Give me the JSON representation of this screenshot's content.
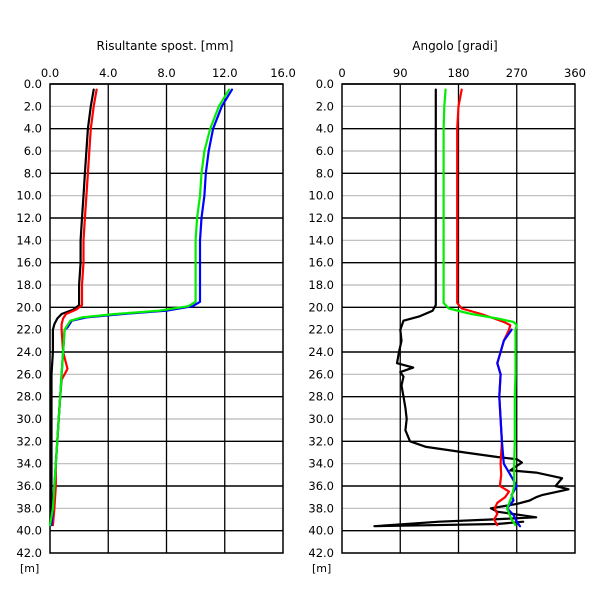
{
  "chart_data": [
    {
      "type": "line",
      "title": "Risultante spost. [mm]",
      "depth_unit": "[m]",
      "x_ticks": [
        "0.0",
        "4.0",
        "8.0",
        "12.0",
        "16.0"
      ],
      "xlim": [
        0,
        16
      ],
      "depth_ticks": [
        "0.0",
        "2.0",
        "4.0",
        "6.0",
        "8.0",
        "10.0",
        "12.0",
        "14.0",
        "16.0",
        "18.0",
        "20.0",
        "22.0",
        "24.0",
        "26.0",
        "28.0",
        "30.0",
        "32.0",
        "34.0",
        "36.0",
        "38.0",
        "40.0",
        "42.0"
      ],
      "depth_range": [
        0,
        42
      ],
      "grid": true,
      "series": [
        {
          "color": "#000000",
          "points": [
            [
              3.0,
              0.5
            ],
            [
              2.8,
              2
            ],
            [
              2.6,
              4
            ],
            [
              2.5,
              6
            ],
            [
              2.4,
              8
            ],
            [
              2.3,
              10
            ],
            [
              2.2,
              12
            ],
            [
              2.1,
              14
            ],
            [
              2.1,
              16
            ],
            [
              2.0,
              18
            ],
            [
              2.0,
              19.8
            ],
            [
              1.6,
              20.2
            ],
            [
              0.8,
              20.6
            ],
            [
              0.5,
              21.0
            ],
            [
              0.3,
              21.5
            ],
            [
              0.2,
              22
            ],
            [
              0.2,
              24
            ],
            [
              0.1,
              26
            ],
            [
              0.1,
              28
            ],
            [
              0.1,
              30
            ],
            [
              0.1,
              32
            ],
            [
              0.1,
              34
            ],
            [
              0.1,
              36
            ],
            [
              0.1,
              38
            ],
            [
              0.0,
              39.5
            ]
          ]
        },
        {
          "color": "#ff0000",
          "points": [
            [
              3.2,
              0.5
            ],
            [
              3.0,
              2
            ],
            [
              2.8,
              4
            ],
            [
              2.7,
              6
            ],
            [
              2.6,
              8
            ],
            [
              2.5,
              10
            ],
            [
              2.4,
              12
            ],
            [
              2.3,
              14
            ],
            [
              2.3,
              16
            ],
            [
              2.2,
              18
            ],
            [
              2.2,
              19.8
            ],
            [
              1.8,
              20.2
            ],
            [
              1.1,
              20.6
            ],
            [
              0.9,
              21.0
            ],
            [
              0.8,
              21.5
            ],
            [
              0.8,
              22
            ],
            [
              0.9,
              24
            ],
            [
              1.2,
              25.5
            ],
            [
              0.8,
              26.5
            ],
            [
              0.7,
              28
            ],
            [
              0.6,
              30
            ],
            [
              0.5,
              32
            ],
            [
              0.4,
              34
            ],
            [
              0.4,
              36
            ],
            [
              0.3,
              38
            ],
            [
              0.2,
              39.5
            ]
          ]
        },
        {
          "color": "#0000ff",
          "points": [
            [
              12.5,
              0.5
            ],
            [
              11.8,
              2
            ],
            [
              11.2,
              4
            ],
            [
              10.9,
              6
            ],
            [
              10.7,
              8
            ],
            [
              10.6,
              10
            ],
            [
              10.4,
              12
            ],
            [
              10.3,
              14
            ],
            [
              10.3,
              16
            ],
            [
              10.3,
              18
            ],
            [
              10.3,
              19.5
            ],
            [
              9.8,
              19.9
            ],
            [
              8.0,
              20.3
            ],
            [
              5.0,
              20.6
            ],
            [
              2.5,
              20.9
            ],
            [
              1.5,
              21.2
            ],
            [
              1.2,
              21.8
            ],
            [
              1.0,
              22
            ],
            [
              0.9,
              24
            ],
            [
              0.8,
              26
            ],
            [
              0.7,
              28
            ],
            [
              0.6,
              30
            ],
            [
              0.5,
              32
            ],
            [
              0.4,
              34
            ],
            [
              0.3,
              36
            ],
            [
              0.2,
              38
            ],
            [
              0.1,
              39.5
            ]
          ]
        },
        {
          "color": "#00ee00",
          "points": [
            [
              12.3,
              0.5
            ],
            [
              11.6,
              2
            ],
            [
              11.0,
              4
            ],
            [
              10.6,
              6
            ],
            [
              10.4,
              8
            ],
            [
              10.3,
              10
            ],
            [
              10.1,
              12
            ],
            [
              10.0,
              14
            ],
            [
              10.0,
              16
            ],
            [
              10.0,
              18
            ],
            [
              10.0,
              19.5
            ],
            [
              9.5,
              19.9
            ],
            [
              7.5,
              20.3
            ],
            [
              4.5,
              20.6
            ],
            [
              2.2,
              20.9
            ],
            [
              1.4,
              21.2
            ],
            [
              1.1,
              21.8
            ],
            [
              1.0,
              22
            ],
            [
              0.9,
              24
            ],
            [
              0.8,
              26
            ],
            [
              0.7,
              28
            ],
            [
              0.6,
              30
            ],
            [
              0.5,
              32
            ],
            [
              0.4,
              34
            ],
            [
              0.3,
              36
            ],
            [
              0.2,
              38
            ],
            [
              0.0,
              39.5
            ]
          ]
        }
      ]
    },
    {
      "type": "line",
      "title": "Angolo [gradi]",
      "depth_unit": "[m]",
      "x_ticks": [
        "0",
        "90",
        "180",
        "270",
        "360"
      ],
      "xlim": [
        0,
        360
      ],
      "depth_ticks": [
        "0.0",
        "2.0",
        "4.0",
        "6.0",
        "8.0",
        "10.0",
        "12.0",
        "14.0",
        "16.0",
        "18.0",
        "20.0",
        "22.0",
        "24.0",
        "26.0",
        "28.0",
        "30.0",
        "32.0",
        "34.0",
        "36.0",
        "38.0",
        "40.0",
        "42.0"
      ],
      "depth_range": [
        0,
        42
      ],
      "grid": true,
      "series": [
        {
          "color": "#000000",
          "points": [
            [
              145,
              0.5
            ],
            [
              145,
              4
            ],
            [
              145,
              10
            ],
            [
              145,
              16
            ],
            [
              145,
              19.8
            ],
            [
              140,
              20.3
            ],
            [
              120,
              20.8
            ],
            [
              95,
              21.2
            ],
            [
              90,
              22
            ],
            [
              92,
              23
            ],
            [
              88,
              24
            ],
            [
              85,
              25
            ],
            [
              110,
              25.4
            ],
            [
              90,
              25.8
            ],
            [
              95,
              26.2
            ],
            [
              92,
              27
            ],
            [
              95,
              28
            ],
            [
              98,
              29
            ],
            [
              100,
              30
            ],
            [
              98,
              31
            ],
            [
              105,
              32
            ],
            [
              130,
              32.5
            ],
            [
              190,
              33
            ],
            [
              240,
              33.4
            ],
            [
              270,
              33.6
            ],
            [
              278,
              33.9
            ],
            [
              270,
              34.2
            ],
            [
              260,
              34.6
            ],
            [
              300,
              34.8
            ],
            [
              340,
              35.3
            ],
            [
              330,
              36
            ],
            [
              350,
              36.3
            ],
            [
              310,
              36.8
            ],
            [
              300,
              37
            ],
            [
              290,
              37.3
            ],
            [
              270,
              37.6
            ],
            [
              230,
              38
            ],
            [
              240,
              38.3
            ],
            [
              300,
              38.8
            ],
            [
              230,
              39
            ],
            [
              150,
              39.2
            ],
            [
              100,
              39.4
            ],
            [
              50,
              39.6
            ],
            [
              240,
              39.4
            ],
            [
              280,
              39.2
            ]
          ]
        },
        {
          "color": "#ff0000",
          "points": [
            [
              185,
              0.5
            ],
            [
              180,
              2
            ],
            [
              178,
              4
            ],
            [
              178,
              6
            ],
            [
              178,
              8
            ],
            [
              178,
              10
            ],
            [
              178,
              12
            ],
            [
              178,
              14
            ],
            [
              178,
              16
            ],
            [
              178,
              18
            ],
            [
              178,
              19.6
            ],
            [
              185,
              20.1
            ],
            [
              215,
              20.6
            ],
            [
              235,
              21.0
            ],
            [
              250,
              21.3
            ],
            [
              260,
              21.6
            ],
            [
              258,
              22
            ],
            [
              250,
              23
            ],
            [
              245,
              24
            ],
            [
              240,
              25
            ],
            [
              245,
              26
            ],
            [
              243,
              28
            ],
            [
              245,
              30
            ],
            [
              247,
              32
            ],
            [
              245,
              34
            ],
            [
              246,
              35
            ],
            [
              244,
              36
            ],
            [
              258,
              36.5
            ],
            [
              252,
              37
            ],
            [
              240,
              37.5
            ],
            [
              236,
              38
            ],
            [
              240,
              38.5
            ],
            [
              235,
              39
            ],
            [
              240,
              39.5
            ]
          ]
        },
        {
          "color": "#0000ff",
          "points": [
            [
              262,
              22
            ],
            [
              250,
              23
            ],
            [
              245,
              24
            ],
            [
              240,
              25
            ],
            [
              245,
              26
            ],
            [
              243,
              28
            ],
            [
              245,
              30
            ],
            [
              247,
              32
            ],
            [
              250,
              34
            ],
            [
              260,
              35
            ],
            [
              270,
              36
            ],
            [
              262,
              36.8
            ],
            [
              265,
              37.3
            ],
            [
              255,
              38
            ],
            [
              265,
              38.6
            ],
            [
              270,
              39.2
            ],
            [
              275,
              39.6
            ]
          ]
        },
        {
          "color": "#00ee00",
          "points": [
            [
              160,
              0.5
            ],
            [
              158,
              2
            ],
            [
              157,
              4
            ],
            [
              157,
              6
            ],
            [
              157,
              8
            ],
            [
              157,
              10
            ],
            [
              157,
              12
            ],
            [
              157,
              14
            ],
            [
              157,
              16
            ],
            [
              157,
              18
            ],
            [
              157,
              19.6
            ],
            [
              165,
              20.1
            ],
            [
              200,
              20.6
            ],
            [
              240,
              21.0
            ],
            [
              265,
              21.3
            ],
            [
              270,
              21.6
            ],
            [
              268,
              22
            ],
            [
              268,
              24
            ],
            [
              268,
              26
            ],
            [
              267,
              28
            ],
            [
              267,
              30
            ],
            [
              267,
              32
            ],
            [
              266,
              34
            ],
            [
              266,
              36
            ],
            [
              262,
              37
            ],
            [
              255,
              38
            ],
            [
              262,
              39
            ],
            [
              268,
              39.5
            ]
          ]
        }
      ]
    }
  ]
}
